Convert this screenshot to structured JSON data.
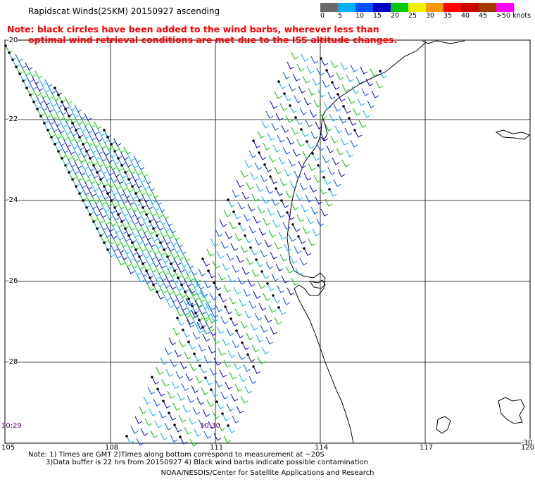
{
  "title": "Rapidscat Winds(25KM) 20150927 ascending",
  "note": {
    "line1": "Note: black circles have been added to the wind barbs, wherever less than",
    "line2": "optimal wind retrieval conditions are met due to the ISS altitude changes."
  },
  "color_scale": {
    "labels": [
      "0",
      "5",
      "10",
      "15",
      "20",
      "25",
      "30",
      "35",
      "40",
      "45",
      ">50 knots"
    ],
    "colors": [
      "#6a6a6a",
      "#00b0ff",
      "#0050ff",
      "#0000c8",
      "#00c800",
      "#f0f000",
      "#ff9900",
      "#ff0000",
      "#c80000",
      "#a03c00",
      "#ff00ff",
      "#8800cc"
    ],
    "units": "knots"
  },
  "map": {
    "lon_labels": [
      "105",
      "108",
      "111",
      "114",
      "117",
      "120"
    ],
    "lat_labels": [
      "-20",
      "-22",
      "-24",
      "-26",
      "-28",
      "-30"
    ],
    "time_labels": [
      "10:29",
      "10:30"
    ]
  },
  "footer": {
    "line1": "Note: 1) Times are GMT 2)Times along bottom correspond to measurement at ~20S",
    "line2": "3)Data buffer is 22 hrs from 20150927 4) Black wind barbs indicate possible contamination",
    "line3": "NOAA/NESDIS/Center for Satellite Applications and Research"
  }
}
